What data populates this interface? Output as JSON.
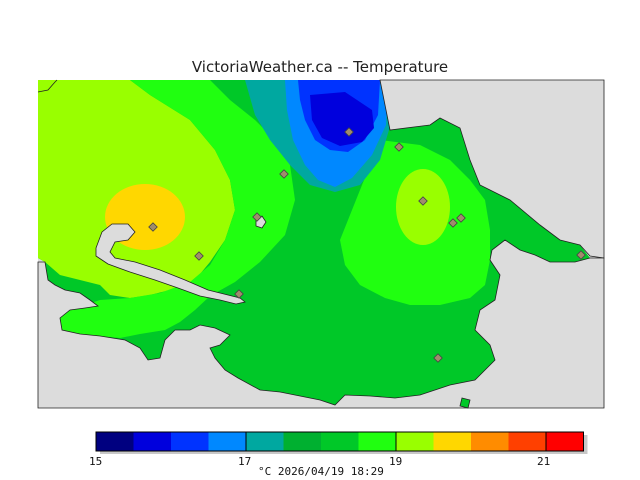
{
  "title": "VictoriaWeather.ca -- Temperature",
  "colors": {
    "water": "#dcdcdc",
    "coast": "#222222",
    "stations": "#a08c6c",
    "bands": [
      "#000080",
      "#0000dd",
      "#0033ff",
      "#0088ff",
      "#00a8a0",
      "#00b030",
      "#00c828",
      "#20ff10",
      "#99ff00",
      "#ffd700",
      "#ff8c00",
      "#ff4000",
      "#ff0000"
    ]
  },
  "legend": {
    "ticks": [
      "15",
      "17",
      "19",
      "21"
    ],
    "caption": "°C  2026/04/19 18:29"
  }
}
